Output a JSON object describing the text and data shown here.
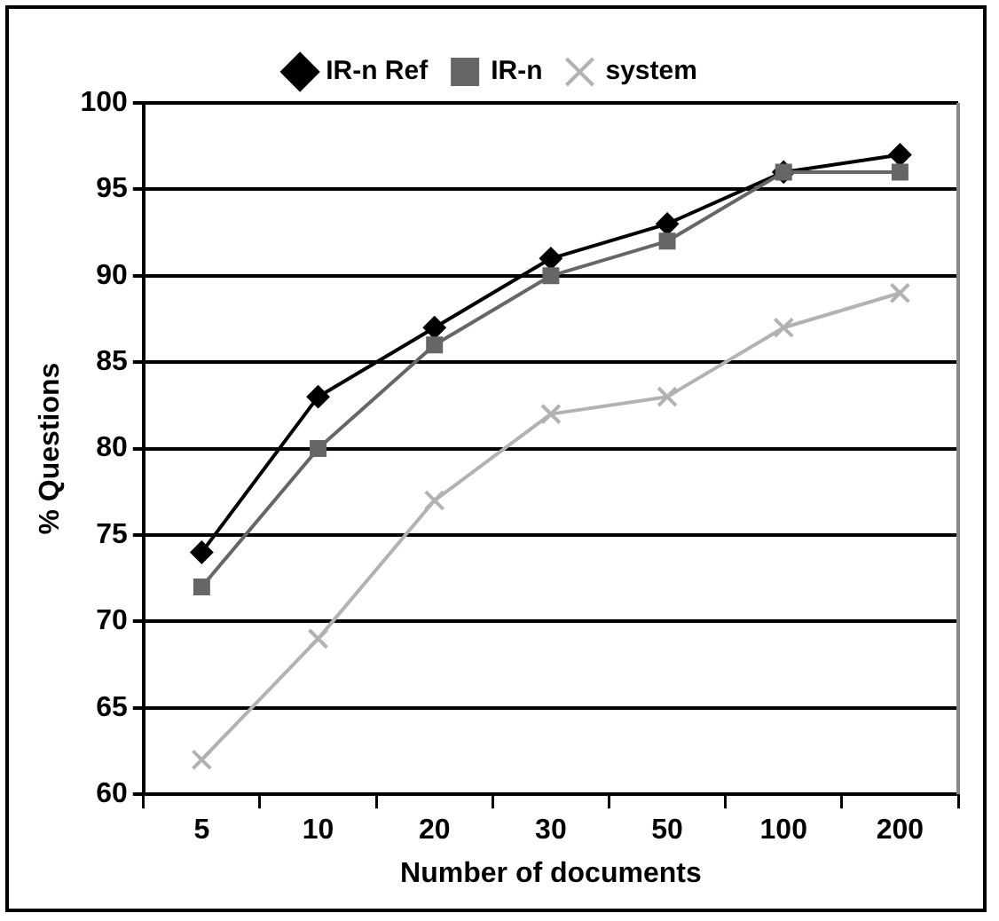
{
  "chart_data": {
    "type": "line",
    "xlabel": "Number of documents",
    "ylabel": "% Questions",
    "categories": [
      "5",
      "10",
      "20",
      "30",
      "50",
      "100",
      "200"
    ],
    "series": [
      {
        "name": "IR-n Ref",
        "color": "#000000",
        "marker": "diamond",
        "values": [
          74,
          83,
          87,
          91,
          93,
          96,
          97
        ]
      },
      {
        "name": "IR-n",
        "color": "#666666",
        "marker": "square",
        "values": [
          72,
          80,
          86,
          90,
          92,
          96,
          96
        ]
      },
      {
        "name": "system",
        "color": "#b2b2b2",
        "marker": "cross",
        "values": [
          62,
          69,
          77,
          82,
          83,
          87,
          89
        ]
      }
    ],
    "ylim": [
      60,
      100
    ],
    "yticks": [
      60,
      65,
      70,
      75,
      80,
      85,
      90,
      95,
      100
    ],
    "grid": "y",
    "legend": "top"
  }
}
